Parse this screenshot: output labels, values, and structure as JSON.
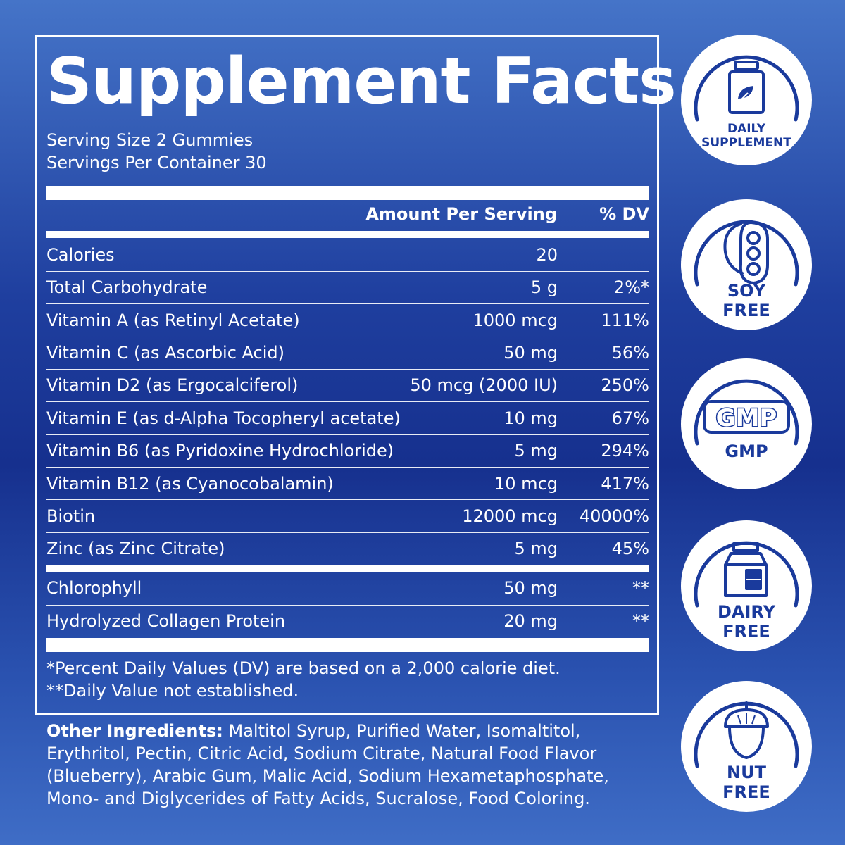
{
  "title": "Supplement Facts",
  "serving_size": "Serving Size 2 Gummies",
  "servings_per_container": "Servings Per Container 30",
  "header": {
    "amount": "Amount Per Serving",
    "dv": "% DV"
  },
  "rows": [
    {
      "name": "Calories",
      "amount": "20",
      "dv": ""
    },
    {
      "name": "Total Carbohydrate",
      "amount": "5 g",
      "dv": "2%*"
    },
    {
      "name": "Vitamin A (as Retinyl Acetate)",
      "amount": "1000 mcg",
      "dv": "111%"
    },
    {
      "name": "Vitamin C (as Ascorbic Acid)",
      "amount": "50 mg",
      "dv": "56%"
    },
    {
      "name": "Vitamin D2 (as Ergocalciferol)",
      "amount": "50 mcg (2000 IU)",
      "dv": "250%"
    },
    {
      "name": "Vitamin E (as d-Alpha Tocopheryl acetate)",
      "amount": "10 mg",
      "dv": "67%"
    },
    {
      "name": "Vitamin B6 (as Pyridoxine Hydrochloride)",
      "amount": "5 mg",
      "dv": "294%"
    },
    {
      "name": "Vitamin B12 (as Cyanocobalamin)",
      "amount": "10 mcg",
      "dv": "417%"
    },
    {
      "name": "Biotin",
      "amount": "12000 mcg",
      "dv": "40000%"
    },
    {
      "name": "Zinc (as Zinc Citrate)",
      "amount": "5 mg",
      "dv": "45%"
    },
    {
      "name": "Chlorophyll",
      "amount": "50 mg",
      "dv": "**"
    },
    {
      "name": "Hydrolyzed Collagen Protein",
      "amount": "20 mg",
      "dv": "**"
    }
  ],
  "footnotes": [
    "*Percent Daily Values (DV) are based on a 2,000 calorie diet.",
    "**Daily Value not established."
  ],
  "other_ingredients": {
    "label": "Other Ingredients:",
    "text": " Maltitol Syrup, Purified Water, Isomaltitol, Erythritol, Pectin, Citric Acid, Sodium Citrate, Natural Food Flavor (Blueberry), Arabic Gum, Malic Acid, Sodium Hexametaphosphate, Mono- and Diglycerides of Fatty Acids, Sucralose, Food Coloring."
  },
  "badges": [
    {
      "label": "DAILY\nSUPPLEMENT",
      "icon": "supplement-bottle-icon"
    },
    {
      "label": "SOY\nFREE",
      "icon": "soybean-icon"
    },
    {
      "label": "GMP",
      "icon": "gmp-icon",
      "icon_text": "GMP"
    },
    {
      "label": "DAIRY\nFREE",
      "icon": "milk-carton-icon"
    },
    {
      "label": "NUT\nFREE",
      "icon": "acorn-icon"
    }
  ],
  "colors": {
    "badge_blue": "#1a3a9c",
    "white": "#ffffff"
  }
}
